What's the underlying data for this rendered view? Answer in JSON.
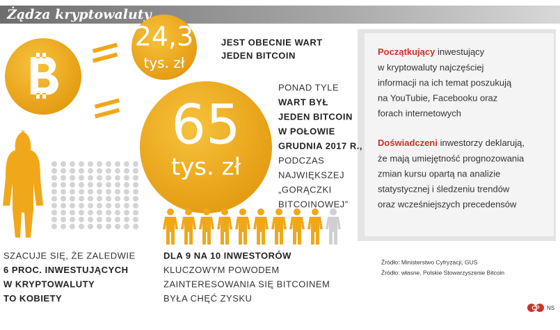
{
  "header": {
    "title": "Żądza kryptowaluty"
  },
  "coin_small": {
    "value": "24,3",
    "unit": "tys. zł",
    "caption": [
      "JEST OBECNIE WART",
      "JEDEN BITCOIN"
    ]
  },
  "coin_big": {
    "value": "65",
    "unit": "tys. zł",
    "caption_intro": [
      "PONAD TYLE"
    ],
    "caption_bold": [
      "WART BYŁ",
      "JEDEN BITCOIN",
      "W POŁOWIE",
      "GRUDNIA 2017 R.,"
    ],
    "caption_outro": [
      "PODCZAS",
      "NAJWIĘKSZEJ",
      "„GORĄCZKI",
      "BITCOINOWEJ”"
    ]
  },
  "women": {
    "normal": [
      "SZACUJE SIĘ, ŻE ZALEDWIE"
    ],
    "bold": [
      "6 PROC. INWESTUJĄCYCH",
      "W KRYPTOWALUTY",
      "TO KOBIETY"
    ]
  },
  "investors": {
    "bold": [
      "DLA 9 NA 10 INWESTORÓW"
    ],
    "normal": [
      "KLUCZOWYM POWODEM",
      "ZAINTERESOWANIA SIĘ BITCOINEM",
      "BYŁA CHĘĆ ZYSKU"
    ]
  },
  "panel": {
    "paragraphs": [
      {
        "lead": "Początkujący",
        "rest": " inwestujący",
        "lines": [
          "w kryptowaluty najczęściej",
          "informacji na ich temat poszukują",
          "na YouTubie, Facebooku oraz",
          "forach internetowych"
        ]
      },
      {
        "lead": "Doświadczeni",
        "rest": " inwestorzy deklarują,",
        "lines": [
          "że mają umiejętność prognozowania",
          "zmian kursu opartą na analizie",
          "statystycznej i śledzeniu trendów",
          "oraz wcześniejszych precedensów"
        ]
      }
    ]
  },
  "sources": [
    "Źródło: Ministerstwo Cyfryzacji, GUS",
    "Źródło: własne, Polskie Stowarzyszenie Bitcoin"
  ],
  "footer": {
    "logo": "CP",
    "author": "NS"
  }
}
